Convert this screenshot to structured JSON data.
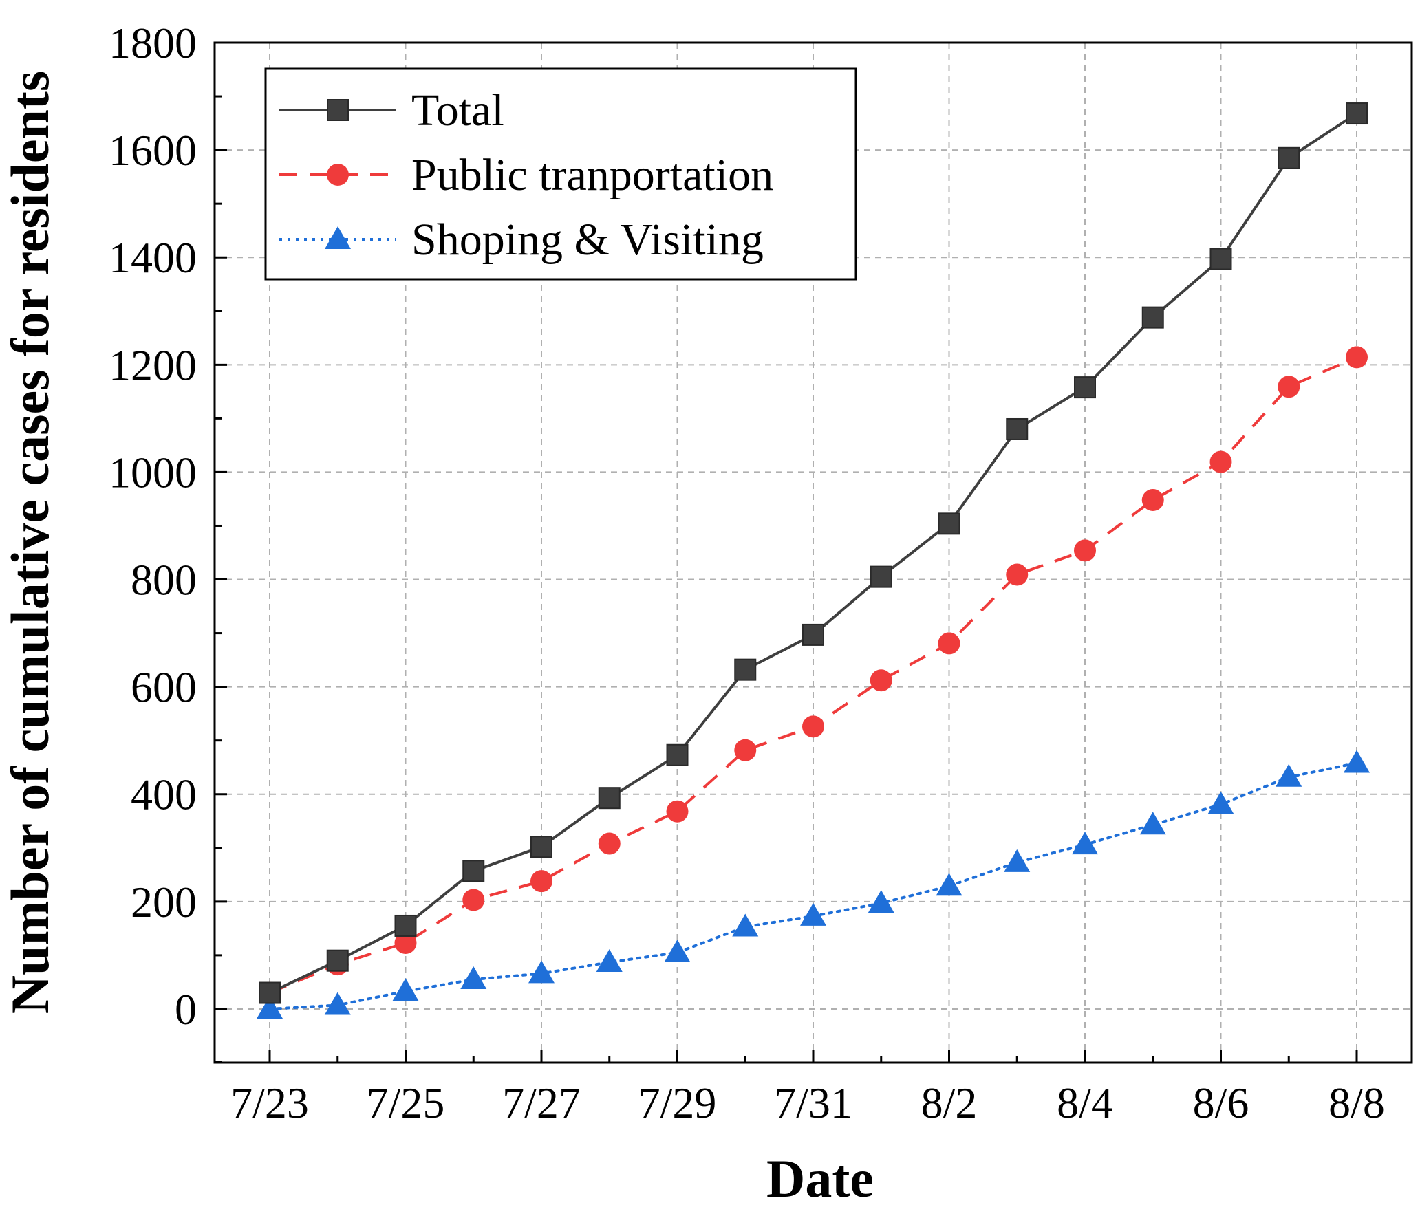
{
  "chart_data": {
    "type": "line",
    "title": "",
    "xlabel": "Date",
    "ylabel": "Number of cumulative cases for residents",
    "ylim": [
      -100,
      1800
    ],
    "yticks": [
      0,
      200,
      400,
      600,
      800,
      1000,
      1200,
      1400,
      1600,
      1800
    ],
    "grid": true,
    "legend_position": "top-left",
    "categories": [
      "7/23",
      "7/24",
      "7/25",
      "7/26",
      "7/27",
      "7/28",
      "7/29",
      "7/30",
      "7/31",
      "8/1",
      "8/2",
      "8/3",
      "8/4",
      "8/5",
      "8/6",
      "8/7",
      "8/8"
    ],
    "tick_labels": [
      "7/23",
      "",
      "7/25",
      "",
      "7/27",
      "",
      "7/29",
      "",
      "7/31",
      "",
      "8/2",
      "",
      "8/4",
      "",
      "8/6",
      "",
      "8/8"
    ],
    "series": [
      {
        "name": "Total",
        "color": "#3f3f3f",
        "line_style": "solid",
        "marker": "square",
        "values": [
          30,
          90,
          155,
          257,
          302,
          393,
          473,
          632,
          697,
          805,
          904,
          1080,
          1158,
          1288,
          1397,
          1585,
          1668
        ]
      },
      {
        "name": "Public tranportation",
        "color": "#ef3b3b",
        "line_style": "dashed",
        "marker": "circle",
        "values": [
          30,
          83,
          123,
          203,
          238,
          308,
          368,
          482,
          526,
          612,
          681,
          809,
          854,
          948,
          1019,
          1159,
          1214
        ]
      },
      {
        "name": "Shoping & Visiting",
        "color": "#1f6fd8",
        "line_style": "dotted",
        "marker": "triangle",
        "values": [
          0,
          7,
          33,
          55,
          66,
          87,
          105,
          153,
          173,
          197,
          229,
          273,
          306,
          343,
          381,
          432,
          458
        ]
      }
    ]
  }
}
